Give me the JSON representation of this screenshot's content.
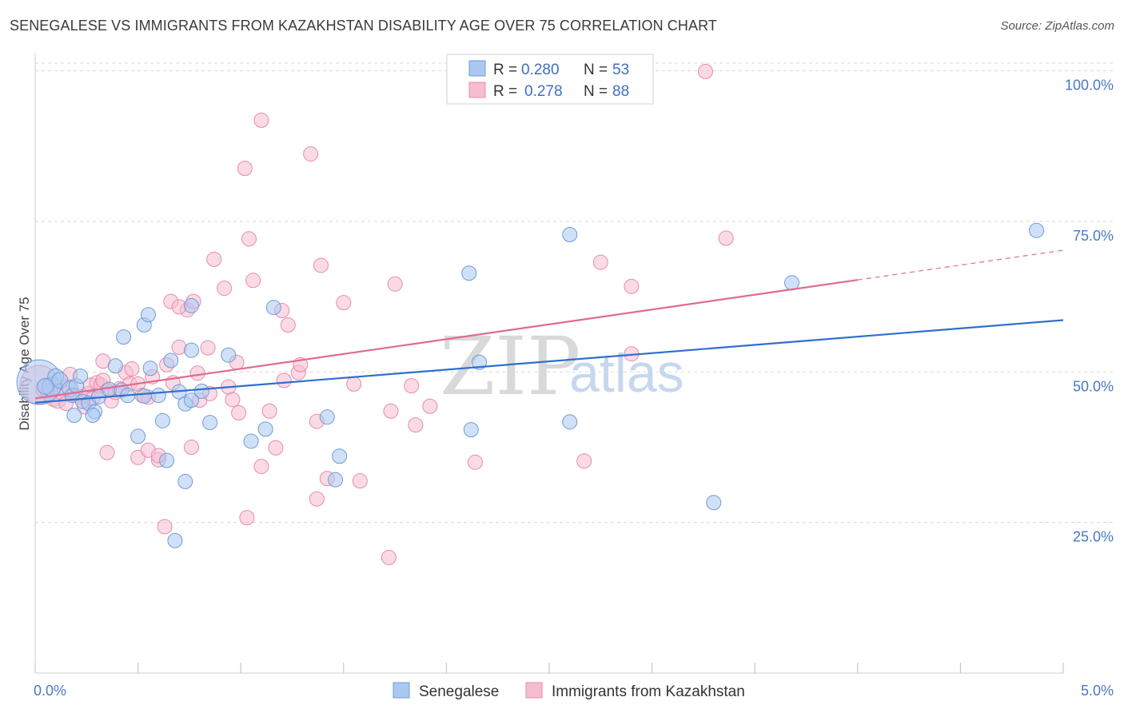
{
  "header": {
    "title": "SENEGALESE VS IMMIGRANTS FROM KAZAKHSTAN DISABILITY AGE OVER 75 CORRELATION CHART",
    "source": "Source: ZipAtlas.com"
  },
  "watermark": {
    "zip": "ZIP",
    "atlas": "atlas"
  },
  "legend": {
    "blue": {
      "r_label": "R =",
      "r_value": "0.280",
      "n_label": "N =",
      "n_value": "53"
    },
    "pink": {
      "r_label": "R =",
      "r_value": "0.278",
      "n_label": "N =",
      "n_value": "88"
    }
  },
  "bottom_legend": {
    "blue": "Senegalese",
    "pink": "Immigrants from Kazakhstan"
  },
  "colors": {
    "blue_fill": "#aac8f0",
    "blue_stroke": "#6f9bd8",
    "blue_line": "#2f6fcf",
    "pink_fill": "#f6bdd0",
    "pink_stroke": "#e88aab",
    "pink_line": "#e06a95",
    "grid": "#d8d8d8",
    "tick_text": "#4a78c2"
  },
  "chart_data": {
    "type": "scatter",
    "title": "SENEGALESE VS IMMIGRANTS FROM KAZAKHSTAN DISABILITY AGE OVER 75 CORRELATION CHART",
    "xlabel": "",
    "ylabel": "Disability Age Over 75",
    "xlim": [
      0,
      5
    ],
    "ylim": [
      0,
      103
    ],
    "x_tick_labels": [
      {
        "value": 0,
        "label": "0.0%"
      },
      {
        "value": 5,
        "label": "5.0%"
      }
    ],
    "y_tick_labels": [
      {
        "value": 25,
        "label": "25.0%"
      },
      {
        "value": 50,
        "label": "50.0%"
      },
      {
        "value": 75,
        "label": "75.0%"
      },
      {
        "value": 100,
        "label": "100.0%"
      }
    ],
    "series": [
      {
        "name": "Senegalese",
        "color": "blue",
        "R": 0.28,
        "N": 53,
        "trend": {
          "x0": 0,
          "y0": 44.9,
          "x1": 5,
          "y1": 58.6,
          "dash_from": null
        },
        "points": [
          [
            0.02,
            48.3,
            28
          ],
          [
            0.08,
            47.5,
            12
          ],
          [
            0.1,
            49.2,
            10
          ],
          [
            0.12,
            48.6,
            10
          ],
          [
            0.05,
            47.6,
            10
          ],
          [
            0.17,
            47.2,
            10
          ],
          [
            0.18,
            46.1,
            9
          ],
          [
            0.2,
            47.7,
            9
          ],
          [
            0.23,
            45.1,
            9
          ],
          [
            0.26,
            44.8,
            9
          ],
          [
            0.29,
            43.4,
            9
          ],
          [
            0.31,
            45.9,
            9
          ],
          [
            0.28,
            42.8,
            9
          ],
          [
            0.19,
            42.8,
            9
          ],
          [
            0.22,
            49.3,
            9
          ],
          [
            0.36,
            47.1,
            9
          ],
          [
            0.39,
            51.0,
            9
          ],
          [
            0.42,
            47.0,
            9
          ],
          [
            0.45,
            46.1,
            9
          ],
          [
            0.56,
            50.6,
            9
          ],
          [
            0.53,
            46.0,
            9
          ],
          [
            0.6,
            46.1,
            9
          ],
          [
            0.62,
            41.9,
            9
          ],
          [
            0.66,
            51.9,
            9
          ],
          [
            0.7,
            46.7,
            9
          ],
          [
            0.73,
            44.7,
            9
          ],
          [
            0.76,
            45.3,
            9
          ],
          [
            0.81,
            46.8,
            9
          ],
          [
            0.85,
            41.6,
            9
          ],
          [
            0.94,
            52.8,
            9
          ],
          [
            0.43,
            55.8,
            9
          ],
          [
            0.53,
            57.8,
            9
          ],
          [
            0.55,
            59.5,
            9
          ],
          [
            0.76,
            53.6,
            9
          ],
          [
            0.76,
            61.0,
            9
          ],
          [
            0.5,
            39.3,
            9
          ],
          [
            0.64,
            35.3,
            9
          ],
          [
            0.73,
            31.8,
            9
          ],
          [
            0.68,
            22.0,
            9
          ],
          [
            1.05,
            38.5,
            9
          ],
          [
            1.12,
            40.5,
            9
          ],
          [
            1.16,
            60.7,
            9
          ],
          [
            1.42,
            42.5,
            9
          ],
          [
            1.48,
            36.0,
            9
          ],
          [
            1.46,
            32.1,
            9
          ],
          [
            2.16,
            51.6,
            9
          ],
          [
            2.11,
            66.4,
            9
          ],
          [
            2.12,
            40.4,
            9
          ],
          [
            2.6,
            72.8,
            9
          ],
          [
            2.6,
            41.7,
            9
          ],
          [
            3.3,
            28.3,
            9
          ],
          [
            3.68,
            64.8,
            9
          ],
          [
            4.87,
            73.5,
            9
          ]
        ]
      },
      {
        "name": "Immigrants from Kazakhstan",
        "color": "pink",
        "R": 0.278,
        "N": 88,
        "trend": {
          "x0": 0,
          "y0": 45.6,
          "x1": 5,
          "y1": 70.2,
          "dash_from": 4.0
        },
        "points": [
          [
            0.02,
            47.9,
            24
          ],
          [
            0.05,
            47.2,
            12
          ],
          [
            0.07,
            46.5,
            11
          ],
          [
            0.09,
            45.6,
            10
          ],
          [
            0.11,
            45.3,
            10
          ],
          [
            0.13,
            46.7,
            10
          ],
          [
            0.16,
            47.6,
            9
          ],
          [
            0.17,
            49.6,
            9
          ],
          [
            0.19,
            46.2,
            9
          ],
          [
            0.22,
            45.9,
            9
          ],
          [
            0.24,
            44.2,
            9
          ],
          [
            0.26,
            46.4,
            9
          ],
          [
            0.27,
            47.8,
            9
          ],
          [
            0.3,
            48.2,
            9
          ],
          [
            0.32,
            47.8,
            9
          ],
          [
            0.33,
            48.6,
            9
          ],
          [
            0.35,
            46.9,
            9
          ],
          [
            0.37,
            45.2,
            9
          ],
          [
            0.39,
            46.6,
            9
          ],
          [
            0.41,
            47.2,
            9
          ],
          [
            0.44,
            49.9,
            9
          ],
          [
            0.46,
            48.0,
            9
          ],
          [
            0.47,
            50.5,
            9
          ],
          [
            0.5,
            48.0,
            9
          ],
          [
            0.52,
            46.1,
            9
          ],
          [
            0.55,
            45.8,
            9
          ],
          [
            0.57,
            49.2,
            9
          ],
          [
            0.33,
            51.8,
            9
          ],
          [
            0.35,
            36.6,
            9
          ],
          [
            0.5,
            35.8,
            9
          ],
          [
            0.55,
            37.0,
            9
          ],
          [
            0.6,
            35.4,
            9
          ],
          [
            0.6,
            36.1,
            9
          ],
          [
            0.64,
            51.2,
            9
          ],
          [
            0.67,
            48.2,
            9
          ],
          [
            0.7,
            54.1,
            9
          ],
          [
            0.74,
            60.3,
            9
          ],
          [
            0.77,
            61.7,
            9
          ],
          [
            0.66,
            61.7,
            9
          ],
          [
            0.7,
            60.8,
            9
          ],
          [
            0.63,
            24.3,
            9
          ],
          [
            0.76,
            37.5,
            9
          ],
          [
            0.79,
            49.8,
            9
          ],
          [
            0.8,
            45.3,
            9
          ],
          [
            0.85,
            46.4,
            9
          ],
          [
            0.84,
            54.0,
            9
          ],
          [
            0.87,
            68.7,
            9
          ],
          [
            0.92,
            63.9,
            9
          ],
          [
            0.94,
            47.5,
            9
          ],
          [
            0.96,
            45.4,
            9
          ],
          [
            0.98,
            51.6,
            9
          ],
          [
            0.99,
            43.2,
            9
          ],
          [
            1.02,
            83.8,
            9
          ],
          [
            1.04,
            72.1,
            9
          ],
          [
            1.06,
            65.2,
            9
          ],
          [
            1.03,
            25.8,
            9
          ],
          [
            1.1,
            34.3,
            9
          ],
          [
            1.14,
            43.5,
            9
          ],
          [
            1.17,
            37.4,
            9
          ],
          [
            1.2,
            60.2,
            9
          ],
          [
            1.21,
            48.6,
            9
          ],
          [
            1.23,
            57.8,
            9
          ],
          [
            1.28,
            49.9,
            9
          ],
          [
            1.29,
            51.2,
            9
          ],
          [
            1.1,
            91.8,
            9
          ],
          [
            1.34,
            86.2,
            9
          ],
          [
            1.37,
            41.8,
            9
          ],
          [
            1.37,
            28.9,
            9
          ],
          [
            1.39,
            67.7,
            9
          ],
          [
            1.42,
            32.3,
            9
          ],
          [
            1.5,
            61.5,
            9
          ],
          [
            1.55,
            48.0,
            9
          ],
          [
            1.58,
            31.9,
            9
          ],
          [
            1.72,
            19.2,
            9
          ],
          [
            1.73,
            43.5,
            9
          ],
          [
            1.75,
            64.6,
            9
          ],
          [
            1.83,
            47.7,
            9
          ],
          [
            1.85,
            41.2,
            9
          ],
          [
            1.92,
            44.3,
            9
          ],
          [
            2.14,
            35.0,
            9
          ],
          [
            2.67,
            35.2,
            9
          ],
          [
            2.75,
            68.2,
            9
          ],
          [
            2.9,
            53.0,
            9
          ],
          [
            2.9,
            64.2,
            9
          ],
          [
            3.26,
            99.9,
            9
          ],
          [
            3.36,
            72.2,
            9
          ],
          [
            0.15,
            44.8,
            9
          ],
          [
            0.28,
            45.6,
            9
          ]
        ]
      }
    ]
  }
}
